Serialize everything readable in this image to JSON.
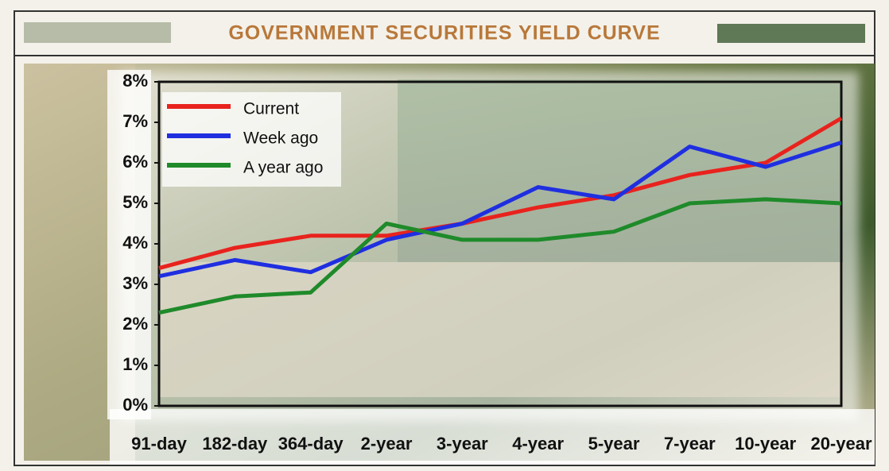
{
  "chart_data": {
    "type": "line",
    "title": "GOVERNMENT SECURITIES YIELD CURVE",
    "categories": [
      "91-day",
      "182-day",
      "364-day",
      "2-year",
      "3-year",
      "4-year",
      "5-year",
      "7-year",
      "10-year",
      "20-year"
    ],
    "series": [
      {
        "name": "Current",
        "color": "#e8231e",
        "values": [
          3.4,
          3.9,
          4.2,
          4.2,
          4.5,
          4.9,
          5.2,
          5.7,
          6.0,
          7.1
        ]
      },
      {
        "name": "Week ago",
        "color": "#1f2fe0",
        "values": [
          3.2,
          3.6,
          3.3,
          4.1,
          4.5,
          5.4,
          5.1,
          6.4,
          5.9,
          6.5
        ]
      },
      {
        "name": "A year ago",
        "color": "#1f8a2a",
        "values": [
          2.3,
          2.7,
          2.8,
          4.5,
          4.1,
          4.1,
          4.3,
          5.0,
          5.1,
          5.0
        ]
      }
    ],
    "ylim": [
      0,
      8
    ],
    "yticks": [
      {
        "value": 0,
        "label": "0%"
      },
      {
        "value": 1,
        "label": "1%"
      },
      {
        "value": 2,
        "label": "2%"
      },
      {
        "value": 3,
        "label": "3%"
      },
      {
        "value": 4,
        "label": "4%"
      },
      {
        "value": 5,
        "label": "5%"
      },
      {
        "value": 6,
        "label": "6%"
      },
      {
        "value": 7,
        "label": "7%"
      },
      {
        "value": 8,
        "label": "8%"
      }
    ],
    "legend": "top-left"
  }
}
